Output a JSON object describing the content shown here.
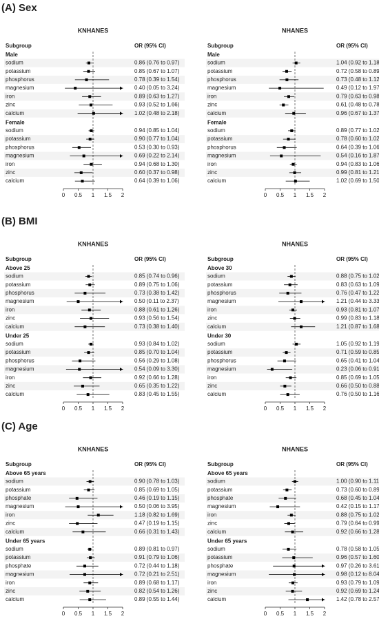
{
  "figure_headings": [
    "(A) Sex",
    "(B) BMI",
    "(C) Age"
  ],
  "chart_data": [
    {
      "type": "forest",
      "title": "KNHANES",
      "column_headers": [
        "Subgroup",
        "OR (95% CI)"
      ],
      "xlim": [
        0,
        2
      ],
      "xticks": [
        0,
        0.5,
        1,
        1.5,
        2
      ],
      "reference_line": 1,
      "color": "#000000",
      "groups": [
        {
          "name": "Male",
          "categories": [
            "sodium",
            "potassium",
            "phosphorus",
            "magnesium",
            "iron",
            "zinc",
            "calcium"
          ],
          "values": [
            0.86,
            0.85,
            0.78,
            0.4,
            0.89,
            0.93,
            1.02
          ],
          "lower": [
            0.76,
            0.67,
            0.39,
            0.05,
            0.63,
            0.52,
            0.48
          ],
          "upper": [
            0.97,
            1.07,
            1.54,
            3.24,
            1.27,
            1.66,
            2.18
          ],
          "value_labels": [
            "0.86 (0.76 to 0.97)",
            "0.85 (0.67 to 1.07)",
            "0.78 (0.39 to 1.54)",
            "0.40 (0.05 to 3.24)",
            "0.89 (0.63 to 1.27)",
            "0.93 (0.52 to 1.66)",
            "1.02 (0.48 to 2.18)"
          ]
        },
        {
          "name": "Female",
          "categories": [
            "sodium",
            "potassium",
            "phosphorus",
            "magnesium",
            "iron",
            "zinc",
            "calcium"
          ],
          "values": [
            0.94,
            0.9,
            0.53,
            0.69,
            0.94,
            0.6,
            0.64
          ],
          "lower": [
            0.85,
            0.77,
            0.3,
            0.22,
            0.68,
            0.37,
            0.39
          ],
          "upper": [
            1.04,
            1.04,
            0.93,
            2.14,
            1.3,
            0.98,
            1.06
          ],
          "value_labels": [
            "0.94 (0.85 to 1.04)",
            "0.90 (0.77 to 1.04)",
            "0.53 (0.30 to 0.93)",
            "0.69 (0.22 to 2.14)",
            "0.94 (0.68 to 1.30)",
            "0.60 (0.37 to 0.98)",
            "0.64 (0.39 to 1.06)"
          ]
        }
      ]
    },
    {
      "type": "forest",
      "title": "NHANES",
      "column_headers": [
        "Subgroup",
        "OR (95% CI)"
      ],
      "xlim": [
        0,
        2
      ],
      "xticks": [
        0,
        0.5,
        1,
        1.5,
        2
      ],
      "reference_line": 1,
      "color": "#000000",
      "groups": [
        {
          "name": "Male",
          "categories": [
            "sodium",
            "potassium",
            "phosphorus",
            "magnesium",
            "iron",
            "zinc",
            "calcium"
          ],
          "values": [
            1.04,
            0.72,
            0.73,
            0.49,
            0.79,
            0.61,
            0.96
          ],
          "lower": [
            0.92,
            0.58,
            0.48,
            0.12,
            0.63,
            0.48,
            0.67
          ],
          "upper": [
            1.18,
            0.89,
            1.12,
            1.97,
            0.98,
            0.78,
            1.37
          ],
          "value_labels": [
            "1.04 (0.92 to 1.18)",
            "0.72 (0.58 to 0.89)",
            "0.73 (0.48 to 1.12)",
            "0.49 (0.12 to 1.97)",
            "0.79 (0.63 to 0.98)",
            "0.61 (0.48 to 0.78)",
            "0.96 (0.67 to 1.37)"
          ]
        },
        {
          "name": "Female",
          "categories": [
            "sodium",
            "potassium",
            "phosphorus",
            "magnesium",
            "iron",
            "zinc",
            "calcium"
          ],
          "values": [
            0.89,
            0.78,
            0.64,
            0.54,
            0.94,
            0.99,
            1.02
          ],
          "lower": [
            0.77,
            0.6,
            0.39,
            0.16,
            0.83,
            0.81,
            0.69
          ],
          "upper": [
            1.02,
            1.02,
            1.06,
            1.87,
            1.06,
            1.21,
            1.5
          ],
          "value_labels": [
            "0.89 (0.77 to 1.02)",
            "0.78 (0.60 to 1.02)",
            "0.64 (0.39 to 1.06)",
            "0.54 (0.16 to 1.87)",
            "0.94 (0.83 to 1.06)",
            "0.99 (0.81 to 1.21)",
            "1.02 (0.69 to 1.50)"
          ]
        }
      ]
    },
    {
      "type": "forest",
      "title": "KNHANES",
      "column_headers": [
        "Subgroup",
        "OR (95% CI)"
      ],
      "xlim": [
        0,
        2
      ],
      "xticks": [
        0,
        0.5,
        1,
        1.5,
        2
      ],
      "reference_line": 1,
      "color": "#000000",
      "groups": [
        {
          "name": "Above 25",
          "categories": [
            "sodium",
            "potassium",
            "phosphorus",
            "magnesium",
            "iron",
            "zinc",
            "calcium"
          ],
          "values": [
            0.85,
            0.89,
            0.73,
            0.5,
            0.88,
            0.93,
            0.73
          ],
          "lower": [
            0.74,
            0.75,
            0.38,
            0.11,
            0.61,
            0.56,
            0.38
          ],
          "upper": [
            0.96,
            1.06,
            1.42,
            2.37,
            1.26,
            1.54,
            1.4
          ],
          "value_labels": [
            "0.85 (0.74 to 0.96)",
            "0.89 (0.75 to 1.06)",
            "0.73 (0.38 to 1.42)",
            "0.50 (0.11 to 2.37)",
            "0.88 (0.61 to 1.26)",
            "0.93 (0.56 to 1.54)",
            "0.73 (0.38 to 1.40)"
          ]
        },
        {
          "name": "Under 25",
          "categories": [
            "sodium",
            "potassium",
            "phosphorus",
            "magnesium",
            "iron",
            "zinc",
            "calcium"
          ],
          "values": [
            0.93,
            0.85,
            0.56,
            0.54,
            0.92,
            0.65,
            0.83
          ],
          "lower": [
            0.84,
            0.7,
            0.29,
            0.09,
            0.66,
            0.35,
            0.45
          ],
          "upper": [
            1.02,
            1.04,
            1.08,
            3.3,
            1.28,
            1.22,
            1.55
          ],
          "value_labels": [
            "0.93 (0.84 to 1.02)",
            "0.85 (0.70 to 1.04)",
            "0.56 (0.29 to 1.08)",
            "0.54 (0.09 to 3.30)",
            "0.92 (0.66 to 1.28)",
            "0.65 (0.35 to 1.22)",
            "0.83 (0.45 to 1.55)"
          ]
        }
      ]
    },
    {
      "type": "forest",
      "title": "NHANES",
      "column_headers": [
        "Subgroup",
        "OR (95% CI)"
      ],
      "xlim": [
        0,
        2
      ],
      "xticks": [
        0,
        0.5,
        1,
        1.5,
        2
      ],
      "reference_line": 1,
      "color": "#000000",
      "groups": [
        {
          "name": "Above 30",
          "categories": [
            "sodium",
            "potassium",
            "phosphorus",
            "magnesium",
            "iron",
            "zinc",
            "calcium"
          ],
          "values": [
            0.88,
            0.83,
            0.76,
            1.21,
            0.93,
            0.99,
            1.21
          ],
          "lower": [
            0.75,
            0.63,
            0.47,
            0.44,
            0.81,
            0.83,
            0.87
          ],
          "upper": [
            1.02,
            1.09,
            1.22,
            3.33,
            1.07,
            1.18,
            1.68
          ],
          "value_labels": [
            "0.88 (0.75 to 1.02)",
            "0.83 (0.63 to 1.09)",
            "0.76 (0.47 to 1.22)",
            "1.21 (0.44 to 3.33)",
            "0.93 (0.81 to 1.07)",
            "0.99 (0.83 to 1.18)",
            "1.21 (0.87 to 1.68)"
          ]
        },
        {
          "name": "Under 30",
          "categories": [
            "sodium",
            "potassium",
            "phosphorus",
            "magnesium",
            "iron",
            "zinc",
            "calcium"
          ],
          "values": [
            1.05,
            0.71,
            0.65,
            0.23,
            0.85,
            0.66,
            0.76
          ],
          "lower": [
            0.92,
            0.59,
            0.41,
            0.06,
            0.69,
            0.5,
            0.5
          ],
          "upper": [
            1.19,
            0.85,
            1.04,
            0.91,
            1.05,
            0.88,
            1.16
          ],
          "value_labels": [
            "1.05 (0.92 to 1.19)",
            "0.71 (0.59 to 0.85)",
            "0.65 (0.41 to 1.04)",
            "0.23 (0.06 to 0.91)",
            "0.85 (0.69 to 1.05)",
            "0.66 (0.50 to 0.88)",
            "0.76 (0.50 to 1.16)"
          ]
        }
      ]
    },
    {
      "type": "forest",
      "title": "KNHANES",
      "column_headers": [
        "Subgroup",
        "OR (95% CI)"
      ],
      "xlim": [
        0,
        2
      ],
      "xticks": [
        0,
        0.5,
        1,
        1.5,
        2
      ],
      "reference_line": 1,
      "color": "#000000",
      "groups": [
        {
          "name": "Above 65 years",
          "categories": [
            "sodium",
            "potassium",
            "phosphate",
            "magnesium",
            "iron",
            "zinc",
            "calcium"
          ],
          "values": [
            0.9,
            0.85,
            0.46,
            0.5,
            1.18,
            0.47,
            0.66
          ],
          "lower": [
            0.78,
            0.69,
            0.19,
            0.06,
            0.82,
            0.19,
            0.31
          ],
          "upper": [
            1.03,
            1.05,
            1.15,
            3.95,
            1.69,
            1.15,
            1.43
          ],
          "value_labels": [
            "0.90 (0.78 to 1.03)",
            "0.85 (0.69 to 1.05)",
            "0.46 (0.19 to 1.15)",
            "0.50 (0.06 to 3.95)",
            "1.18 (0.82 to 1.69)",
            "0.47 (0.19 to 1.15)",
            "0.66 (0.31 to 1.43)"
          ]
        },
        {
          "name": "Under 65 years",
          "categories": [
            "sodium",
            "potassium",
            "phosphate",
            "magnesium",
            "iron",
            "zinc",
            "calcium"
          ],
          "values": [
            0.89,
            0.91,
            0.72,
            0.72,
            0.89,
            0.82,
            0.89
          ],
          "lower": [
            0.81,
            0.79,
            0.44,
            0.21,
            0.68,
            0.54,
            0.55
          ],
          "upper": [
            0.97,
            1.06,
            1.18,
            2.51,
            1.17,
            1.26,
            1.44
          ],
          "value_labels": [
            "0.89 (0.81 to 0.97)",
            "0.91 (0.79 to 1.06)",
            "0.72 (0.44 to 1.18)",
            "0.72 (0.21 to 2.51)",
            "0.89 (0.68 to 1.17)",
            "0.82 (0.54 to 1.26)",
            "0.89 (0.55 to 1.44)"
          ]
        }
      ]
    },
    {
      "type": "forest",
      "title": "NHANES",
      "column_headers": [
        "Subgroup",
        "OR (95% CI)"
      ],
      "xlim": [
        0,
        2
      ],
      "xticks": [
        0,
        0.5,
        1,
        1.5,
        2
      ],
      "reference_line": 1,
      "color": "#000000",
      "groups": [
        {
          "name": "Above 65 years",
          "categories": [
            "sodium",
            "potassium",
            "phosphate",
            "magnesium",
            "iron",
            "zinc",
            "calcium"
          ],
          "values": [
            1.0,
            0.73,
            0.68,
            0.42,
            0.88,
            0.79,
            0.92
          ],
          "lower": [
            0.9,
            0.6,
            0.45,
            0.15,
            0.75,
            0.64,
            0.66
          ],
          "upper": [
            1.11,
            0.89,
            1.04,
            1.17,
            1.02,
            0.99,
            1.28
          ],
          "value_labels": [
            "1.00 (0.90 to 1.11)",
            "0.73 (0.60 to 0.89)",
            "0.68 (0.45 to 1.04)",
            "0.42 (0.15 to 1.17)",
            "0.88 (0.75 to 1.02)",
            "0.79 (0.64 to 0.99)",
            "0.92 (0.66 to 1.28)"
          ]
        },
        {
          "name": "Under 65 years",
          "categories": [
            "sodium",
            "potassium",
            "phosphate",
            "magnesium",
            "iron",
            "zinc",
            "calcium"
          ],
          "values": [
            0.78,
            0.96,
            0.97,
            0.98,
            0.93,
            0.92,
            1.42
          ],
          "lower": [
            0.58,
            0.57,
            0.26,
            0.12,
            0.79,
            0.69,
            0.78
          ],
          "upper": [
            1.05,
            1.6,
            3.61,
            8.04,
            1.09,
            1.24,
            2.57
          ],
          "value_labels": [
            "0.78 (0.58 to 1.05)",
            "0.96 (0.57 to 1.60)",
            "0.97 (0.26 to 3.61)",
            "0.98 (0.12 to 8.04)",
            "0.93 (0.79 to 1.09)",
            "0.92 (0.69 to 1.24)",
            "1.42 (0.78 to 2.57)"
          ]
        }
      ]
    }
  ]
}
